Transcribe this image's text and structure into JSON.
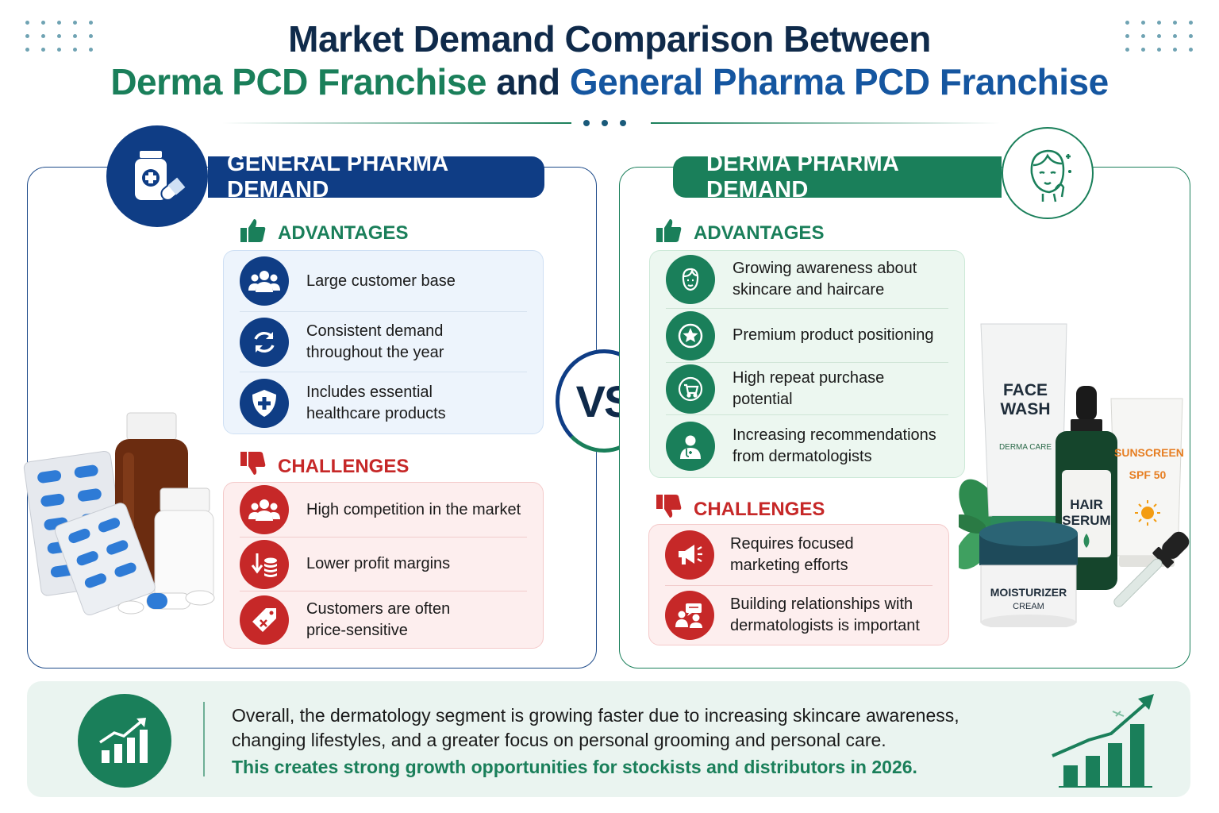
{
  "title": {
    "line1": "Market Demand Comparison Between",
    "line2_part1": "Derma PCD Franchise",
    "line2_part2": "and",
    "line2_part3": "General Pharma PCD Franchise"
  },
  "general": {
    "heading": "GENERAL PHARMA DEMAND",
    "advantages_label": "ADVANTAGES",
    "advantages": [
      {
        "icon": "group-icon",
        "text": "Large customer base"
      },
      {
        "icon": "refresh-icon",
        "text": "Consistent demand\nthroughout the year"
      },
      {
        "icon": "shield-plus-icon",
        "text": "Includes essential\nhealthcare products"
      }
    ],
    "challenges_label": "CHALLENGES",
    "challenges": [
      {
        "icon": "group-icon",
        "text": "High competition in the market"
      },
      {
        "icon": "coins-down-icon",
        "text": "Lower profit margins"
      },
      {
        "icon": "price-tag-icon",
        "text": "Customers are often\nprice-sensitive"
      }
    ]
  },
  "derma": {
    "heading": "DERMA PHARMA DEMAND",
    "advantages_label": "ADVANTAGES",
    "advantages": [
      {
        "icon": "face-icon",
        "text": "Growing awareness about\nskincare and haircare"
      },
      {
        "icon": "star-badge-icon",
        "text": "Premium product positioning"
      },
      {
        "icon": "cart-icon",
        "text": "High repeat purchase potential"
      },
      {
        "icon": "doctor-icon",
        "text": "Increasing recommendations\nfrom dermatologists"
      }
    ],
    "challenges_label": "CHALLENGES",
    "challenges": [
      {
        "icon": "megaphone-icon",
        "text": "Requires focused\nmarketing efforts"
      },
      {
        "icon": "consultation-icon",
        "text": "Building relationships with\ndermatologists is important"
      }
    ]
  },
  "vs_label": "VS",
  "products": {
    "face_wash": "FACE\nWASH",
    "derma_care": "DERMA CARE",
    "hair_serum": "HAIR\nSERUM",
    "sunscreen": "SUNSCREEN",
    "spf": "SPF 50",
    "moisturizer": "MOISTURIZER",
    "cream": "CREAM"
  },
  "footer": {
    "text": "Overall, the dermatology segment is growing faster due to increasing skincare awareness, changing lifestyles, and a greater focus on personal grooming and personal care.",
    "highlight": "This creates strong growth opportunities for stockists and distributors in 2026."
  },
  "colors": {
    "navy": "#0f3d85",
    "green": "#1a7f5a",
    "red": "#c62828",
    "title_dark": "#0f2a4a"
  }
}
